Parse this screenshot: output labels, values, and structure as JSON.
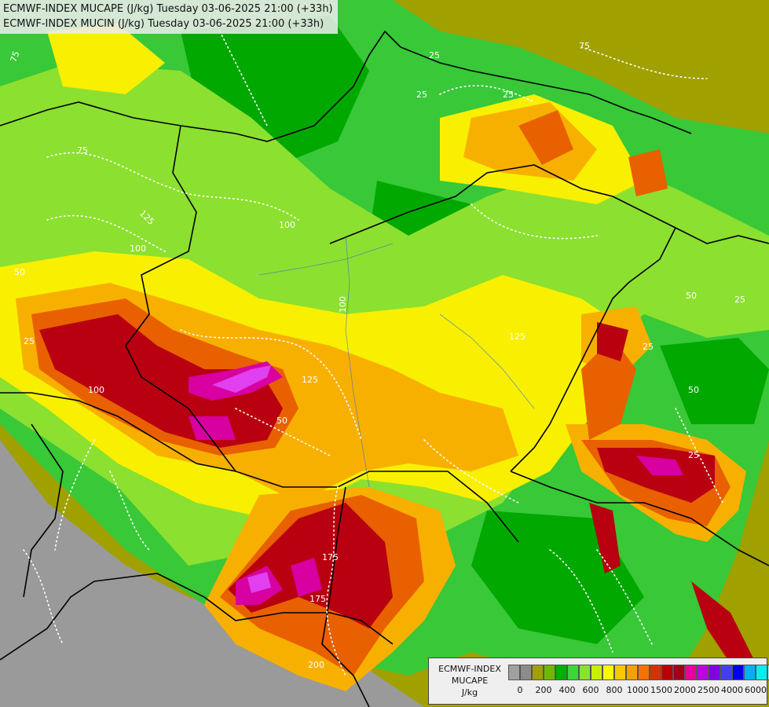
{
  "header": {
    "line1": "ECMWF-INDEX MUCAPE (J/kg) Tuesday 03-06-2025 21:00 (+33h)",
    "line2": "ECMWF-INDEX MUCIN (J/kg) Tuesday 03-06-2025 21:00 (+33h)"
  },
  "legend": {
    "title_line1": "ECMWF-INDEX",
    "title_line2": "MUCAPE",
    "unit": "J/kg",
    "colors": [
      "#a0a0a0",
      "#8c8c8c",
      "#a0a000",
      "#70b800",
      "#00b000",
      "#38d838",
      "#8ce030",
      "#c8f000",
      "#f8f800",
      "#f8c800",
      "#f8a000",
      "#f87000",
      "#d83000",
      "#b80000",
      "#a00018",
      "#e800a0",
      "#c000e0",
      "#8000e8",
      "#4040f0",
      "#0000f0",
      "#00b0f0",
      "#00f0f0",
      "#a0fffe",
      "#ffffff"
    ],
    "tick_labels": [
      "0",
      "200",
      "400",
      "600",
      "800",
      "1000",
      "1500",
      "2000",
      "2500",
      "4000",
      "6000"
    ]
  },
  "contour_labels": [
    "25",
    "50",
    "75",
    "100",
    "125",
    "150",
    "175",
    "200"
  ],
  "colors": {
    "background": "#9a9a9a",
    "olive": "#a0a000",
    "green": "#38c838",
    "dark_green": "#00a800",
    "light_green": "#8ce030",
    "yellow": "#f8f000",
    "orange": "#f8b000",
    "red_orange": "#e86000",
    "dark_red": "#b80010",
    "magenta": "#d800a0"
  }
}
